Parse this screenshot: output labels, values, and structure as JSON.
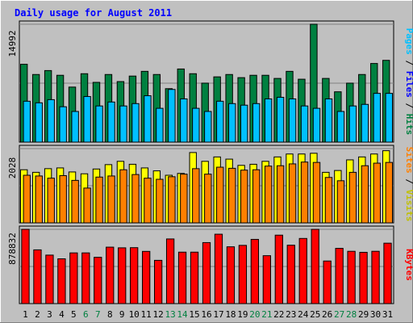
{
  "chart_data": {
    "type": "bar",
    "title": "Daily usage for August 2011",
    "days": [
      {
        "label": "1",
        "weekend": false
      },
      {
        "label": "2",
        "weekend": false
      },
      {
        "label": "3",
        "weekend": false
      },
      {
        "label": "4",
        "weekend": false
      },
      {
        "label": "5",
        "weekend": false
      },
      {
        "label": "6",
        "weekend": true
      },
      {
        "label": "7",
        "weekend": true
      },
      {
        "label": "8",
        "weekend": false
      },
      {
        "label": "9",
        "weekend": false
      },
      {
        "label": "10",
        "weekend": false
      },
      {
        "label": "11",
        "weekend": false
      },
      {
        "label": "12",
        "weekend": false
      },
      {
        "label": "13",
        "weekend": true
      },
      {
        "label": "14",
        "weekend": true
      },
      {
        "label": "15",
        "weekend": false
      },
      {
        "label": "16",
        "weekend": false
      },
      {
        "label": "17",
        "weekend": false
      },
      {
        "label": "18",
        "weekend": false
      },
      {
        "label": "19",
        "weekend": false
      },
      {
        "label": "20",
        "weekend": true
      },
      {
        "label": "21",
        "weekend": true
      },
      {
        "label": "22",
        "weekend": false
      },
      {
        "label": "23",
        "weekend": false
      },
      {
        "label": "24",
        "weekend": false
      },
      {
        "label": "25",
        "weekend": false
      },
      {
        "label": "26",
        "weekend": false
      },
      {
        "label": "27",
        "weekend": true
      },
      {
        "label": "28",
        "weekend": true
      },
      {
        "label": "29",
        "weekend": false
      },
      {
        "label": "30",
        "weekend": false
      },
      {
        "label": "31",
        "weekend": false
      }
    ],
    "panels": [
      {
        "name": "hits-files",
        "ymax_label": "14992",
        "ymax": 14992,
        "series": [
          {
            "name": "Hits",
            "color": "#008040",
            "values": [
              9900,
              8600,
              9100,
              8500,
              7000,
              8700,
              7600,
              8600,
              7700,
              8400,
              9000,
              8600,
              6800,
              9300,
              8700,
              7500,
              8300,
              8600,
              8200,
              8500,
              8500,
              8100,
              9000,
              8000,
              14992,
              8100,
              6400,
              7500,
              8600,
              10000,
              10400
            ]
          },
          {
            "name": "Files",
            "color": "#00c0ff",
            "values": [
              5200,
              5000,
              5400,
              4500,
              3900,
              5800,
              4600,
              5100,
              4600,
              4900,
              5900,
              4300,
              6700,
              5500,
              4300,
              3900,
              5200,
              4900,
              4700,
              4900,
              5500,
              5700,
              5500,
              4600,
              4300,
              5500,
              3900,
              4600,
              4800,
              6200,
              6200
            ]
          }
        ],
        "legend": [
          {
            "text": "Pages",
            "color": "#00c0ff"
          },
          {
            "text": " / ",
            "color": "#000000"
          },
          {
            "text": "Files",
            "color": "#0000ff"
          },
          {
            "text": " / ",
            "color": "#000000"
          },
          {
            "text": "Hits",
            "color": "#008040"
          }
        ]
      },
      {
        "name": "visits-sites",
        "ymax_label": "2028",
        "ymax": 2028,
        "series": [
          {
            "name": "Visits",
            "color": "#ffff00",
            "values": [
              1450,
              1380,
              1480,
              1500,
              1390,
              1340,
              1470,
              1590,
              1680,
              1600,
              1500,
              1420,
              1300,
              1350,
              1920,
              1680,
              1800,
              1740,
              1570,
              1600,
              1680,
              1800,
              1880,
              1880,
              1900,
              1380,
              1430,
              1720,
              1800,
              1880,
              1970
            ]
          },
          {
            "name": "Sites",
            "color": "#ff8000",
            "values": [
              1300,
              1280,
              1220,
              1290,
              1160,
              950,
              1250,
              1280,
              1450,
              1320,
              1220,
              1190,
              1260,
              1330,
              1480,
              1330,
              1520,
              1490,
              1440,
              1450,
              1550,
              1560,
              1610,
              1660,
              1650,
              1240,
              1150,
              1380,
              1560,
              1630,
              1650
            ]
          }
        ],
        "legend": [
          {
            "text": "Sites",
            "color": "#ff8000"
          },
          {
            "text": " / ",
            "color": "#000000"
          },
          {
            "text": "Visits",
            "color": "#c0c000"
          }
        ]
      },
      {
        "name": "kbytes",
        "ymax_label": "878832",
        "ymax": 878832,
        "series": [
          {
            "name": "KBytes",
            "color": "#ff0000",
            "values": [
              878832,
              636000,
              574000,
              530000,
              600000,
              600000,
              548000,
              668000,
              660000,
              662000,
              618000,
              512000,
              765000,
              609000,
              609000,
              722000,
              821000,
              672000,
              689000,
              760000,
              567000,
              810000,
              691000,
              771000,
              878832,
              504000,
              654000,
              619000,
              607000,
              619000,
              715000
            ]
          }
        ],
        "legend": [
          {
            "text": "KBytes",
            "color": "#ff0000"
          }
        ]
      }
    ]
  }
}
